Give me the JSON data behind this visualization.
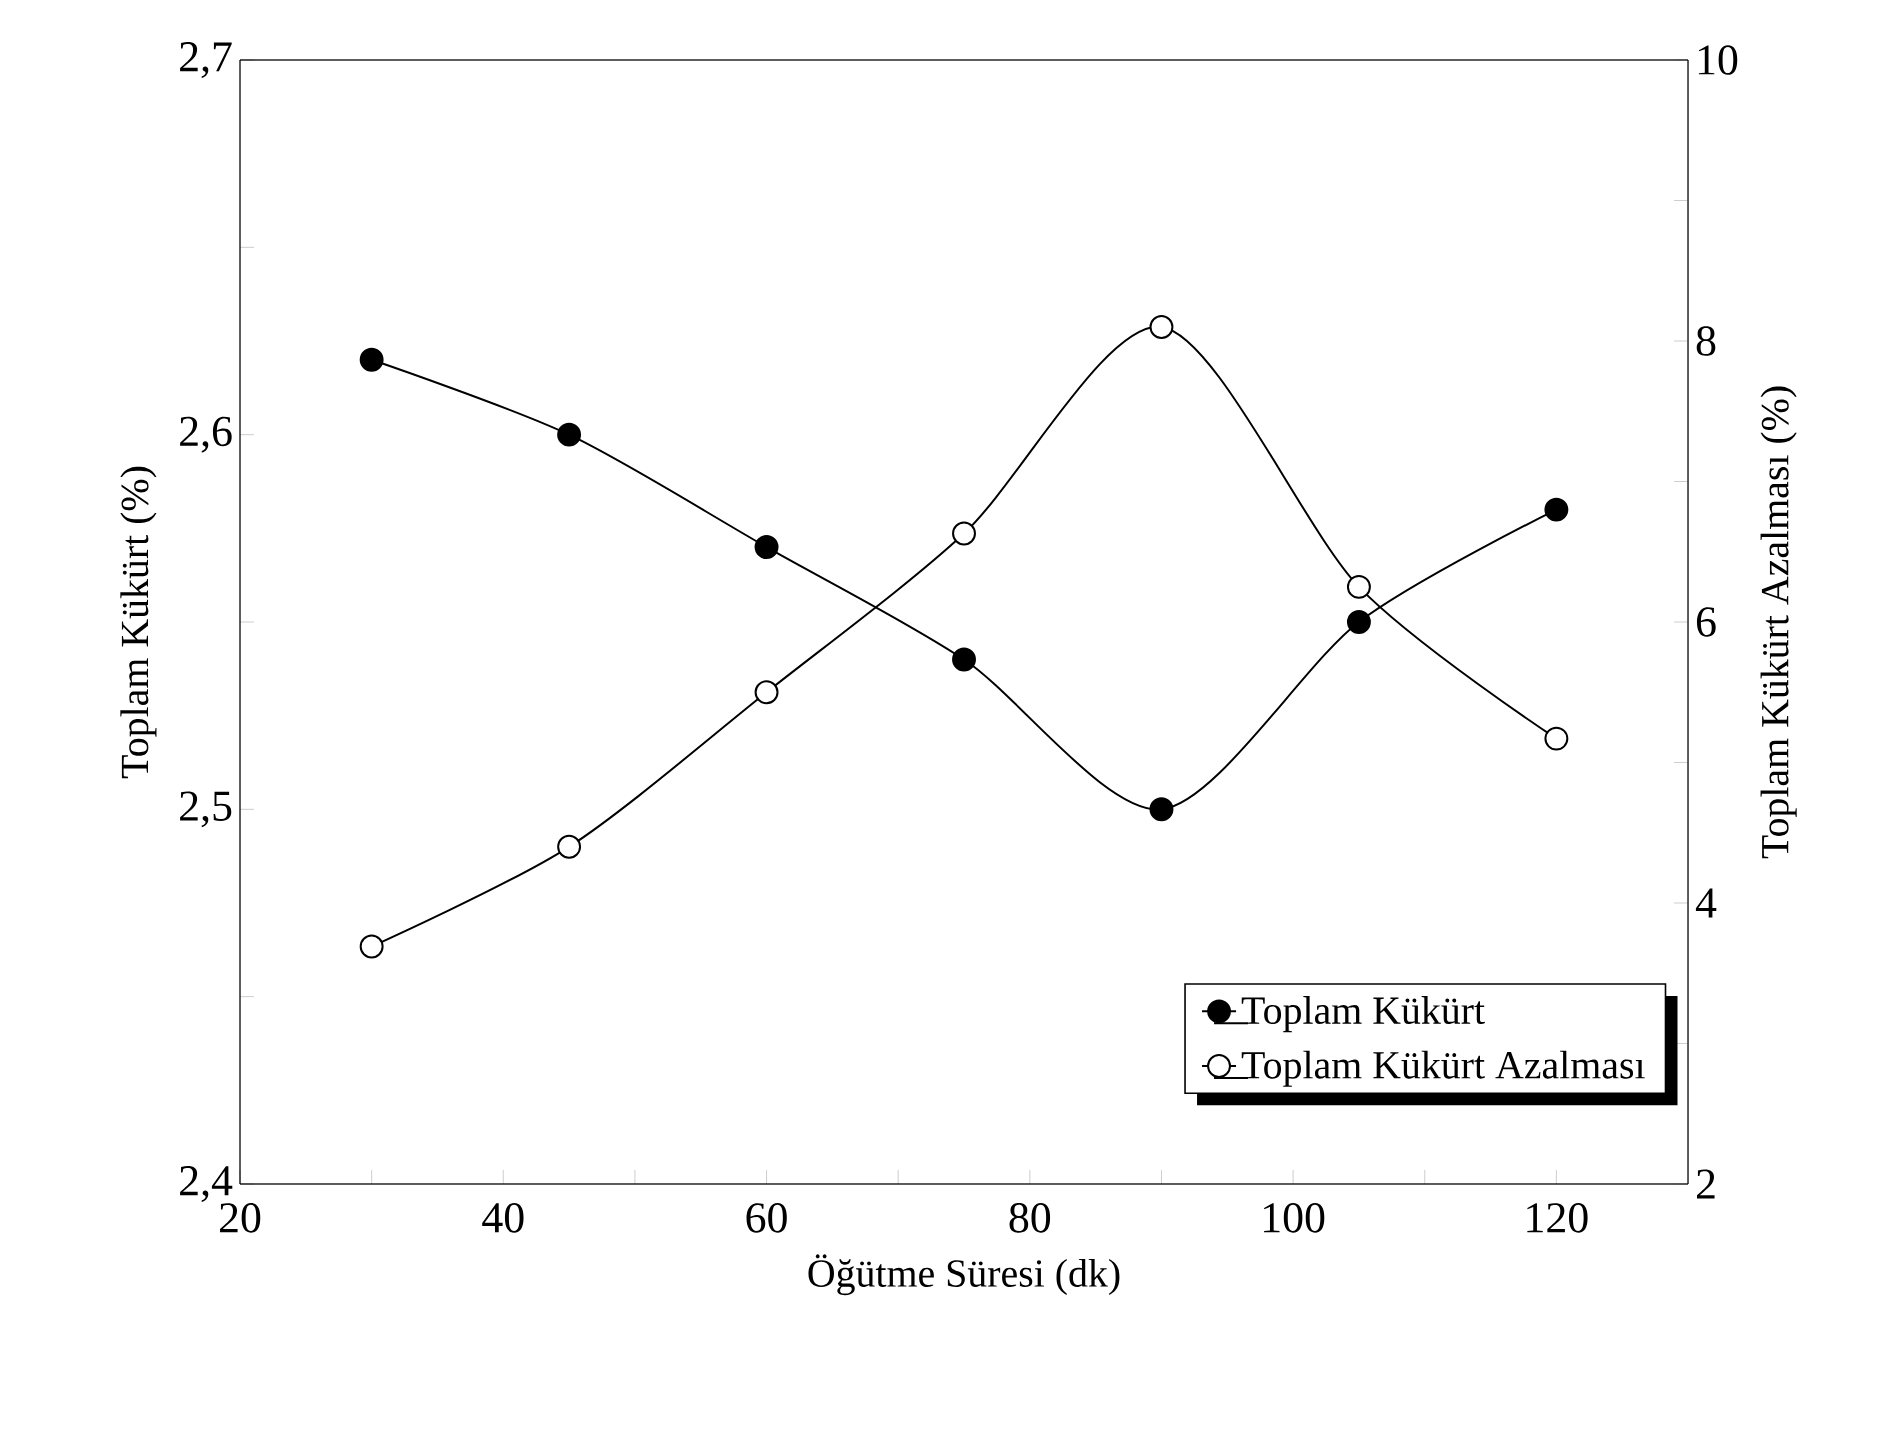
{
  "chart_data": {
    "type": "line",
    "xlabel": "Öğütme Süresi (dk)",
    "ylabel": "Toplam Kükürt (%)",
    "y2label": "Toplam Kükürt Azalması (%)",
    "x": [
      30,
      45,
      60,
      75,
      90,
      105,
      120
    ],
    "series": [
      {
        "name": "Toplam Kükürt",
        "color": "#000000",
        "values": [
          2.62,
          2.6,
          2.57,
          2.54,
          2.5,
          2.55,
          2.58
        ]
      },
      {
        "name": "Toplam Kükürt Azalması",
        "color": "#000000",
        "axis": "y2",
        "values": [
          3.69,
          4.4,
          5.5,
          6.63,
          8.1,
          6.25,
          5.17
        ]
      }
    ],
    "xlim": [
      20,
      130
    ],
    "xticks": [
      20,
      {
        "value": 30,
        "label": null
      },
      40,
      {
        "value": 50,
        "label": null
      },
      60,
      {
        "value": 70,
        "label": null
      },
      80,
      {
        "value": 90,
        "label": null
      },
      100,
      {
        "value": 110,
        "label": null
      },
      120
    ],
    "ylim": [
      2.4,
      2.7
    ],
    "yticks": [
      {
        "value": 2.4,
        "label": "2,4"
      },
      {
        "value": 2.45,
        "label": null
      },
      {
        "value": 2.5,
        "label": "2,5"
      },
      {
        "value": 2.55,
        "label": null
      },
      {
        "value": 2.6,
        "label": "2,6"
      },
      {
        "value": 2.65,
        "label": null
      },
      {
        "value": 2.7,
        "label": "2,7"
      }
    ],
    "y2lim": [
      2,
      10
    ],
    "y2ticks": [
      2,
      {
        "value": 3,
        "label": null
      },
      4,
      {
        "value": 5,
        "label": null
      },
      6,
      {
        "value": 7,
        "label": null
      },
      8,
      {
        "value": 9,
        "label": null
      },
      10
    ],
    "grid": false,
    "legend": "bottom right",
    "marker": "circle",
    "line_style": "solid"
  }
}
